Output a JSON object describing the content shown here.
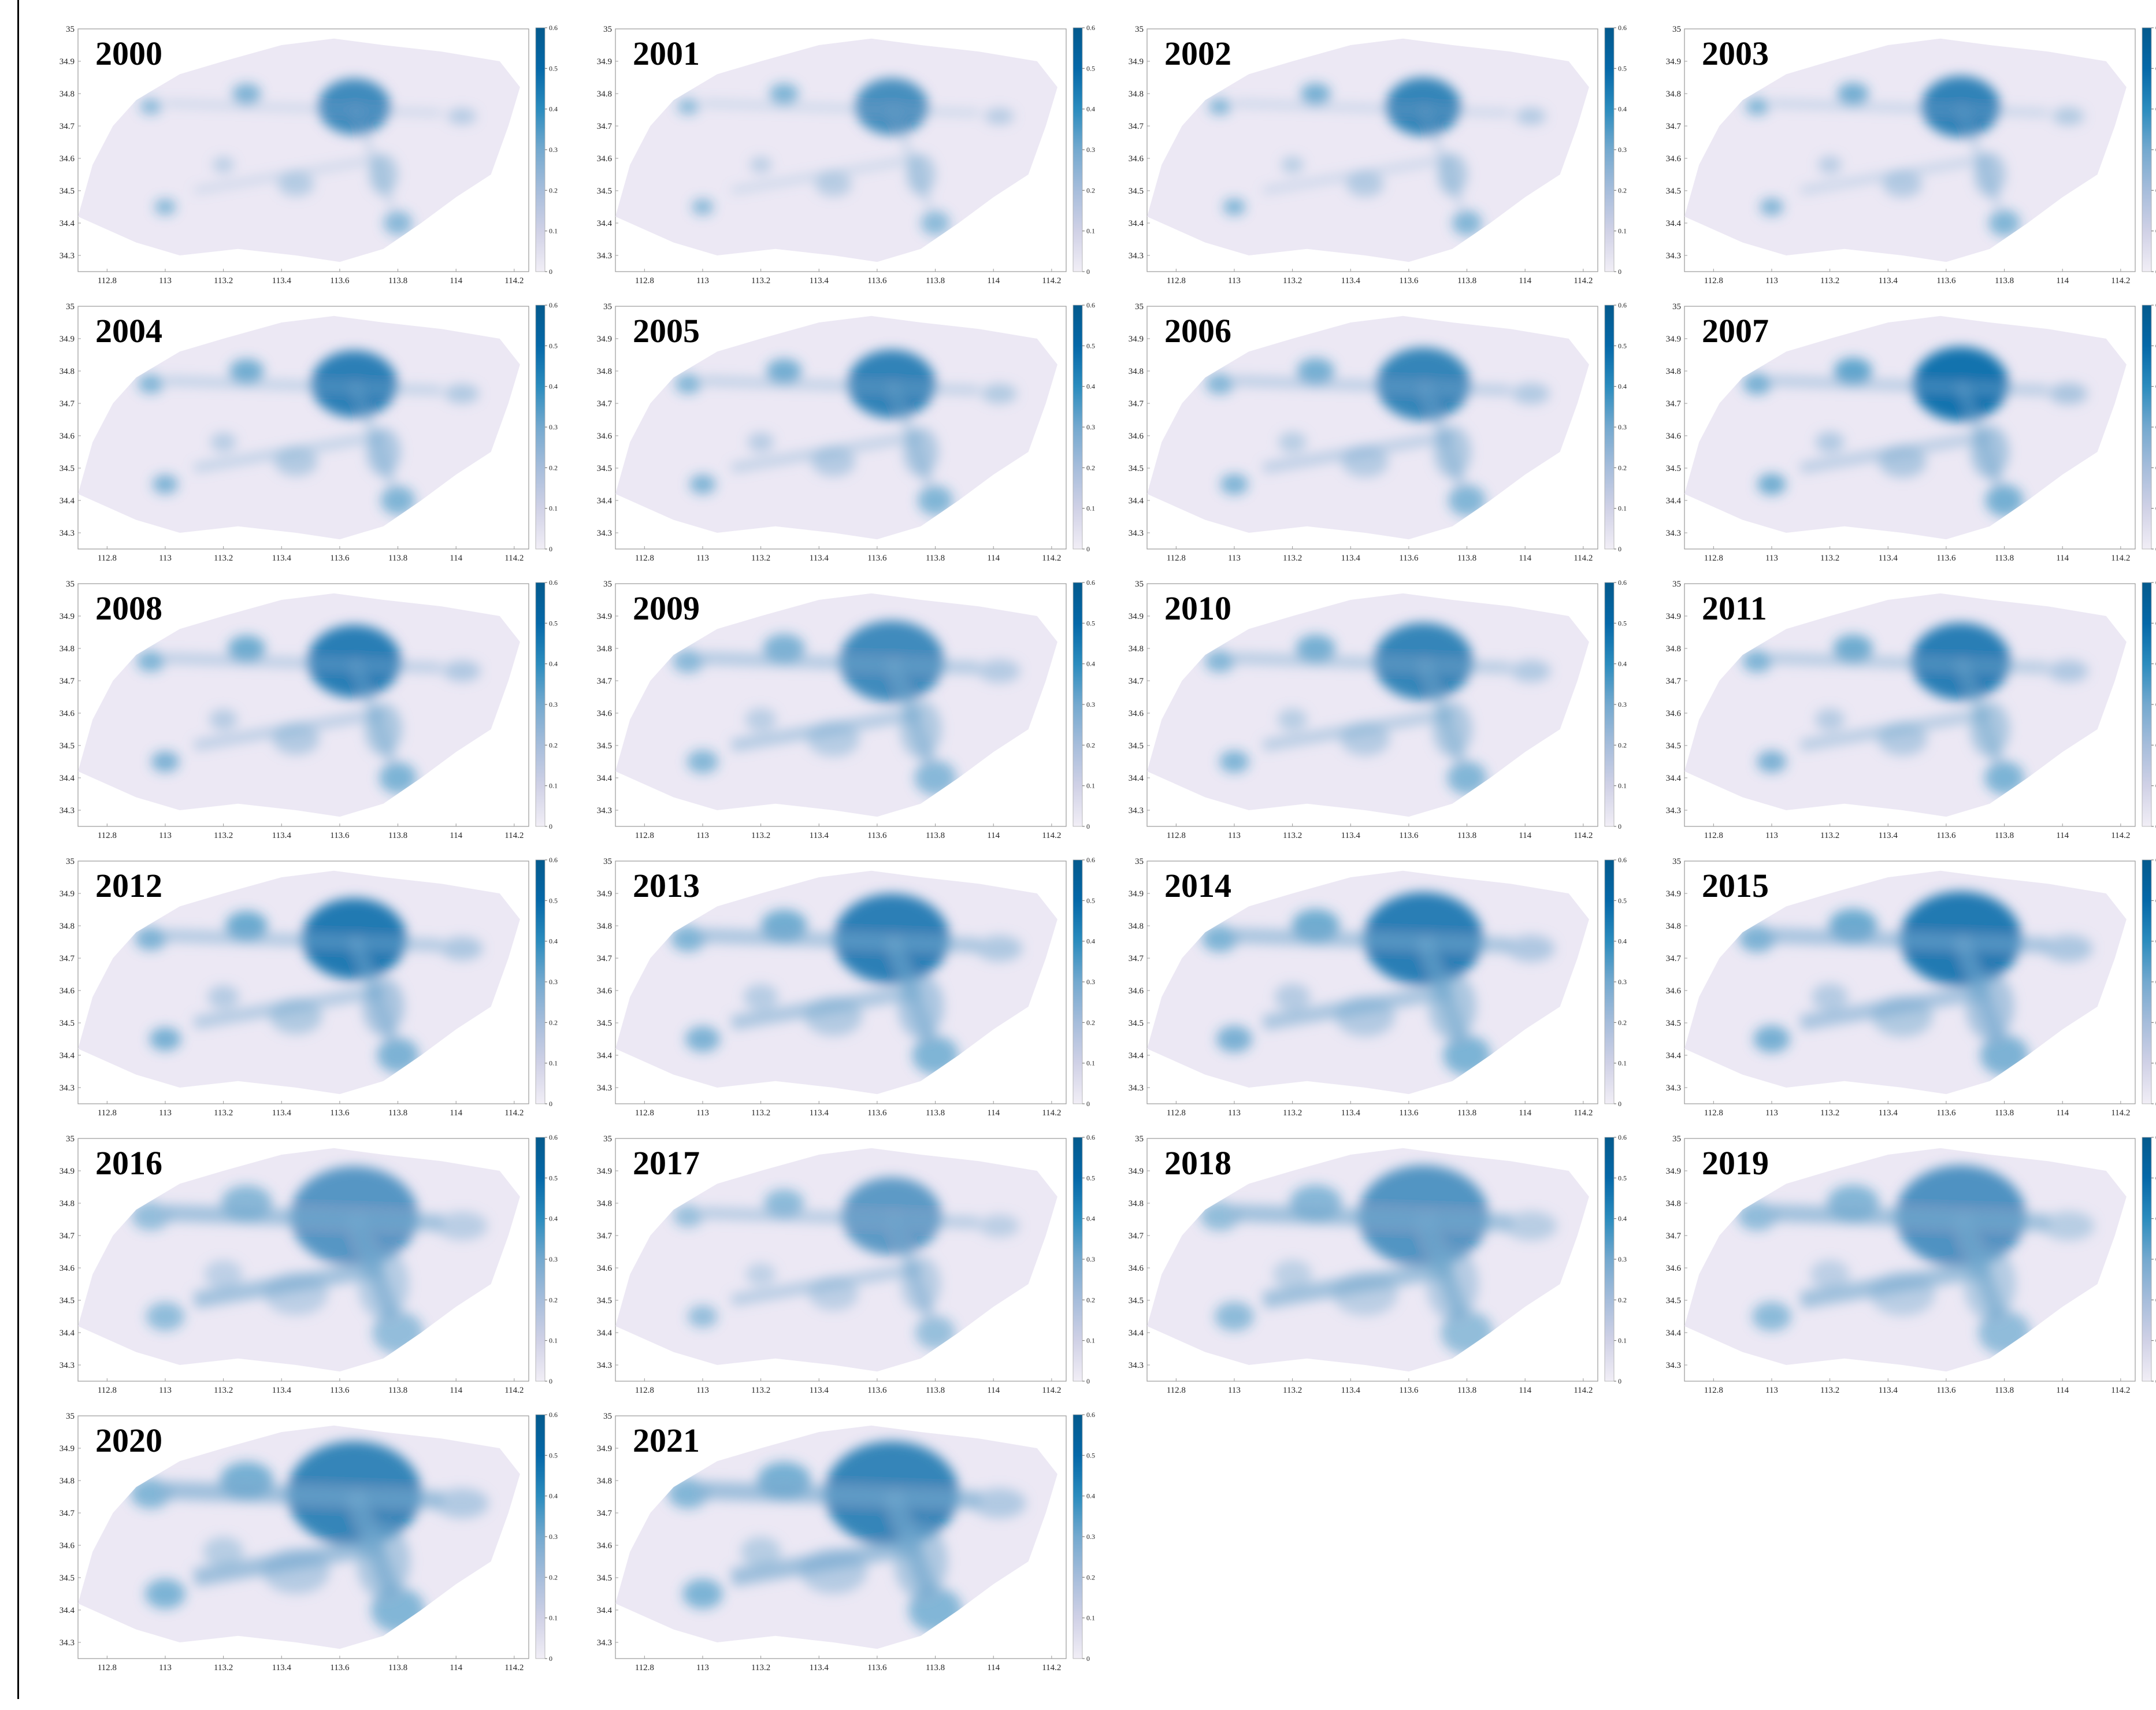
{
  "figure": {
    "x_ticks": [
      "112.8",
      "113",
      "113.2",
      "113.4",
      "113.6",
      "113.8",
      "114",
      "114.2"
    ],
    "y_ticks": [
      "34.3",
      "34.4",
      "34.5",
      "34.6",
      "34.7",
      "34.8",
      "34.9",
      "35"
    ],
    "colorbar_ticks": [
      "0",
      "0.1",
      "0.2",
      "0.3",
      "0.4",
      "0.5",
      "0.6"
    ],
    "colorbar_range": [
      0,
      0.6
    ],
    "colorscale": [
      "#f1eef6",
      "#d0d1e6",
      "#a6bddb",
      "#74a9cf",
      "#2b8cbe",
      "#0568a8",
      "#045a8d"
    ],
    "map_fill_color": "#ece8f4",
    "panels": [
      {
        "year": "2000",
        "intensity": 0.3,
        "spread": 0.15
      },
      {
        "year": "2001",
        "intensity": 0.28,
        "spread": 0.16
      },
      {
        "year": "2002",
        "intensity": 0.33,
        "spread": 0.18
      },
      {
        "year": "2003",
        "intensity": 0.34,
        "spread": 0.22
      },
      {
        "year": "2004",
        "intensity": 0.35,
        "spread": 0.3
      },
      {
        "year": "2005",
        "intensity": 0.34,
        "spread": 0.32
      },
      {
        "year": "2006",
        "intensity": 0.33,
        "spread": 0.38
      },
      {
        "year": "2007",
        "intensity": 0.42,
        "spread": 0.4
      },
      {
        "year": "2008",
        "intensity": 0.36,
        "spread": 0.38
      },
      {
        "year": "2009",
        "intensity": 0.3,
        "spread": 0.5
      },
      {
        "year": "2010",
        "intensity": 0.33,
        "spread": 0.44
      },
      {
        "year": "2011",
        "intensity": 0.36,
        "spread": 0.44
      },
      {
        "year": "2012",
        "intensity": 0.38,
        "spread": 0.5
      },
      {
        "year": "2013",
        "intensity": 0.35,
        "spread": 0.62
      },
      {
        "year": "2014",
        "intensity": 0.36,
        "spread": 0.66
      },
      {
        "year": "2015",
        "intensity": 0.38,
        "spread": 0.68
      },
      {
        "year": "2016",
        "intensity": 0.24,
        "spread": 0.75
      },
      {
        "year": "2017",
        "intensity": 0.22,
        "spread": 0.45
      },
      {
        "year": "2018",
        "intensity": 0.25,
        "spread": 0.78
      },
      {
        "year": "2019",
        "intensity": 0.26,
        "spread": 0.78
      },
      {
        "year": "2020",
        "intensity": 0.33,
        "spread": 0.82
      },
      {
        "year": "2021",
        "intensity": 0.33,
        "spread": 0.82
      }
    ]
  }
}
